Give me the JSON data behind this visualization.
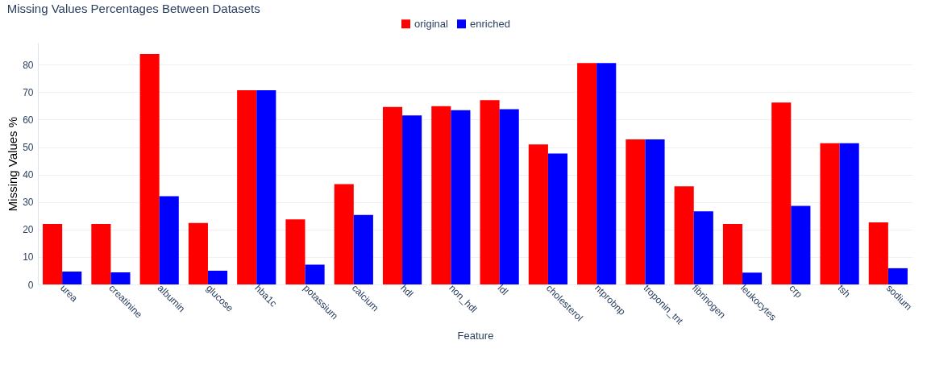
{
  "chart_data": {
    "type": "bar",
    "title": "Missing Values Percentages Between Datasets",
    "xlabel": "Feature",
    "ylabel": "Missing Values %",
    "categories": [
      "urea",
      "creatinine",
      "albumin",
      "glucose",
      "hba1c",
      "potassium",
      "calcium",
      "hdl",
      "non_hdl",
      "ldl",
      "cholesterol",
      "ntprobnp",
      "troponin_tnt",
      "fibrinogen",
      "leukocytes",
      "crp",
      "tsh",
      "sodium"
    ],
    "series": [
      {
        "name": "original",
        "color": "#ff0000",
        "values": [
          22.0,
          22.0,
          83.9,
          22.4,
          70.7,
          23.7,
          36.5,
          64.6,
          64.9,
          67.1,
          51.0,
          80.6,
          52.8,
          35.7,
          22.0,
          66.2,
          51.4,
          22.6
        ]
      },
      {
        "name": "enriched",
        "color": "#0000ff",
        "values": [
          4.7,
          4.4,
          32.1,
          5.0,
          70.7,
          7.2,
          25.3,
          61.5,
          63.4,
          63.8,
          47.7,
          80.6,
          52.8,
          26.6,
          4.3,
          28.6,
          51.4,
          5.9
        ]
      }
    ],
    "ylim": [
      0,
      88
    ],
    "yticks": [
      0,
      10,
      20,
      30,
      40,
      50,
      60,
      70,
      80
    ],
    "grid": "y",
    "legend": "top"
  }
}
